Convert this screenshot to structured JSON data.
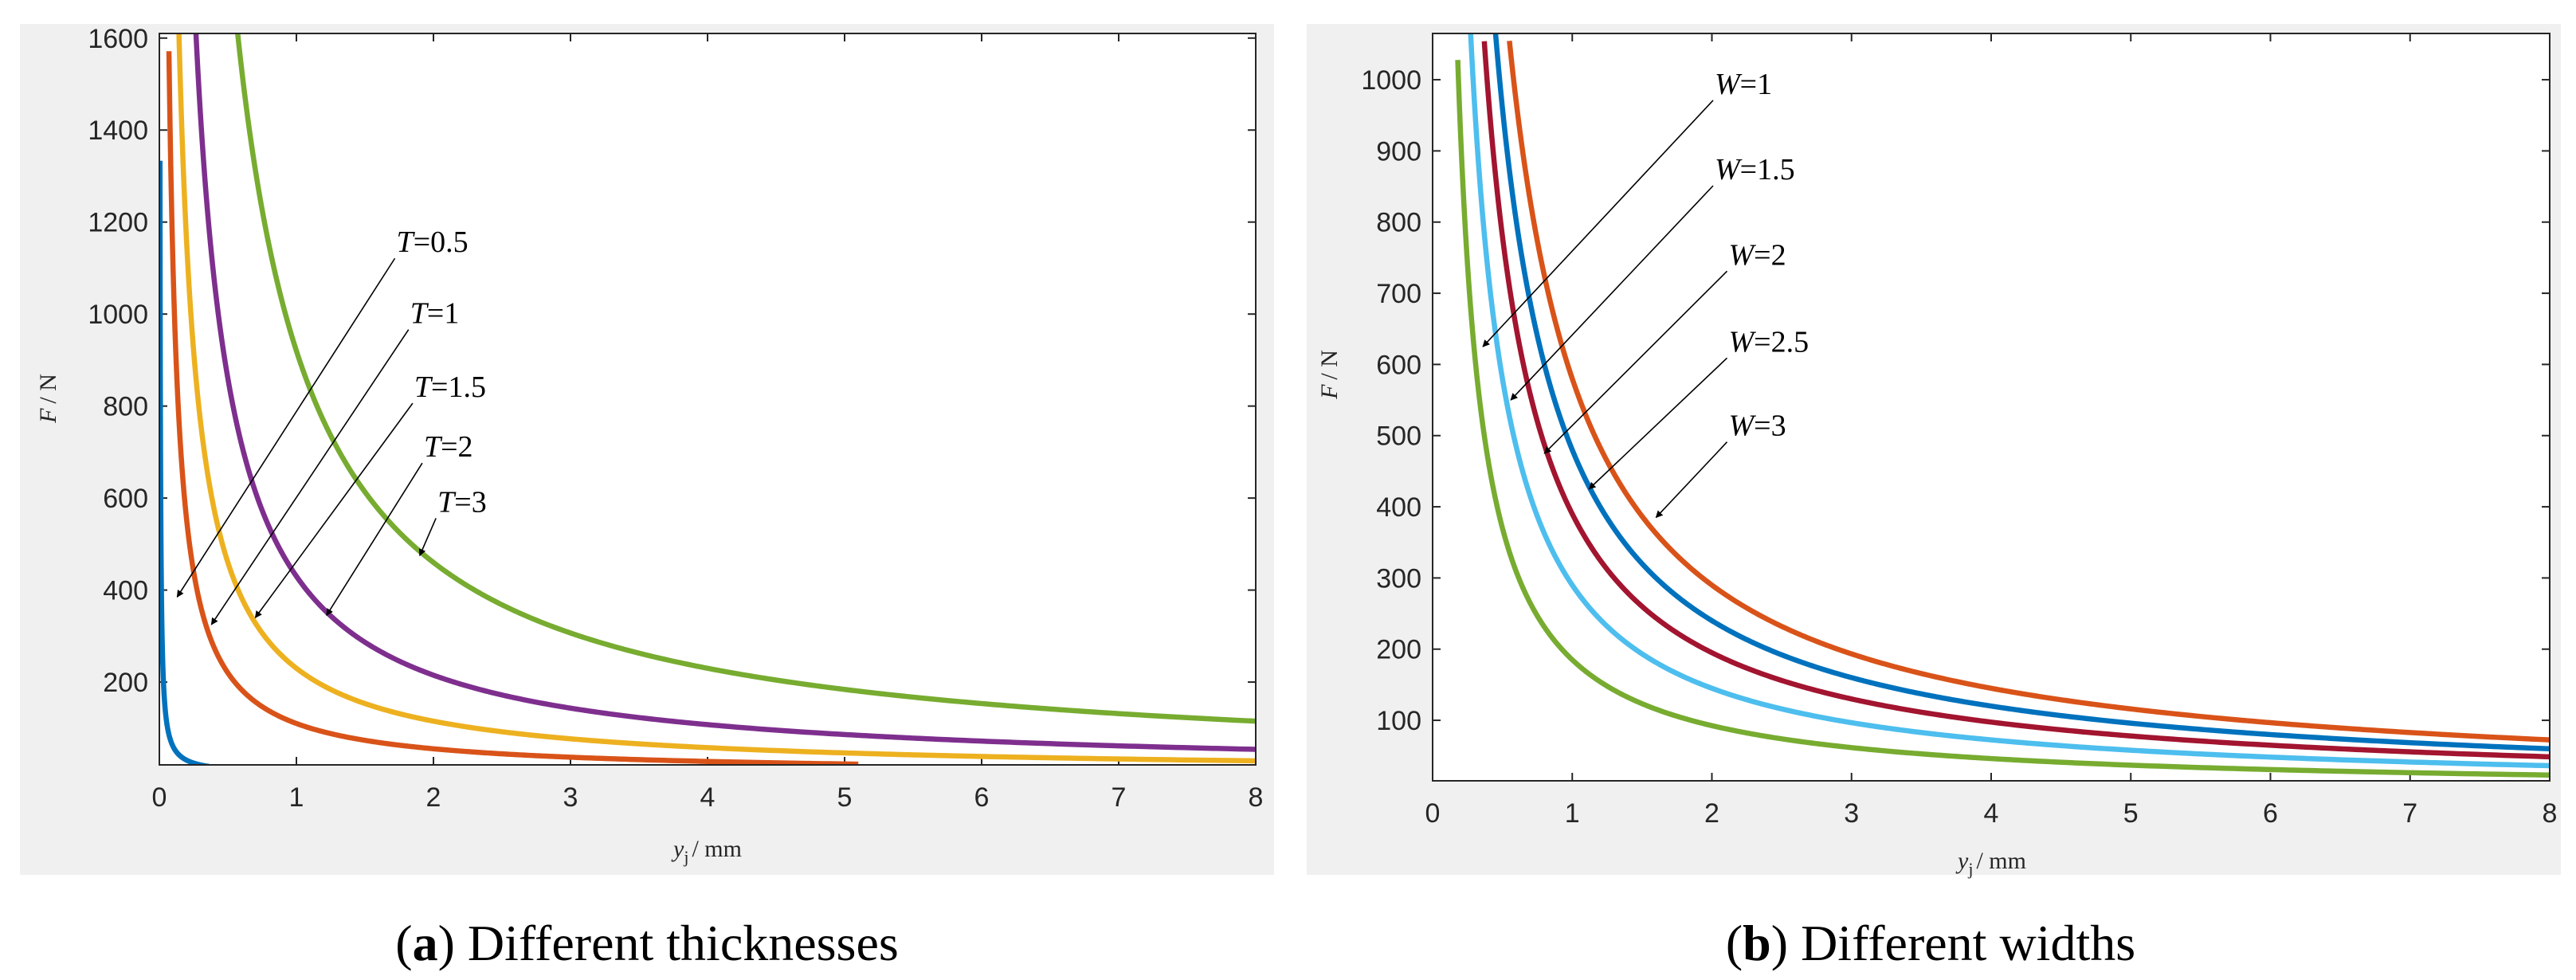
{
  "chart_data": [
    {
      "type": "line",
      "caption_letter": "a",
      "caption_text": ") Different thicknesses",
      "xlabel_var": "y",
      "xlabel_sub": "j",
      "xlabel_unit": "/ mm",
      "ylabel_var": "F",
      "ylabel_unit": "/ N",
      "xlim": [
        0,
        8
      ],
      "ylim": [
        20,
        1610
      ],
      "xticks": [
        0,
        1,
        2,
        3,
        4,
        5,
        6,
        7,
        8
      ],
      "yticks": [
        200,
        400,
        600,
        800,
        1000,
        1200,
        1400,
        1600
      ],
      "grid": false,
      "series": [
        {
          "name": "T=0.5",
          "color": "#0072BD",
          "k": 6,
          "x_start": 0.0045,
          "x_end": 1.26
        },
        {
          "name": "T=1",
          "color": "#D95319",
          "k": 110,
          "x_start": 0.07,
          "x_end": 5.1
        },
        {
          "name": "T=1.5",
          "color": "#EDB120",
          "k": 230,
          "x_start": 0.14,
          "x_end": 8
        },
        {
          "name": "T=2",
          "color": "#7E2F8E",
          "k": 430,
          "x_start": 0.26,
          "x_end": 8
        },
        {
          "name": "T=3",
          "color": "#77AC30",
          "k": 920,
          "x_start": 0.56,
          "x_end": 8
        }
      ],
      "annotations": [
        {
          "var": "T",
          "text": "=0.5",
          "label_x": 1.73,
          "label_y": 1135,
          "arrow_x": 0.13,
          "arrow_y": 385
        },
        {
          "var": "T",
          "text": "=1",
          "label_x": 1.83,
          "label_y": 980,
          "arrow_x": 0.38,
          "arrow_y": 325
        },
        {
          "var": "T",
          "text": "=1.5",
          "label_x": 1.86,
          "label_y": 820,
          "arrow_x": 0.7,
          "arrow_y": 340
        },
        {
          "var": "T",
          "text": "=2",
          "label_x": 1.93,
          "label_y": 690,
          "arrow_x": 1.22,
          "arrow_y": 345
        },
        {
          "var": "T",
          "text": "=3",
          "label_x": 2.03,
          "label_y": 570,
          "arrow_x": 1.9,
          "arrow_y": 475
        }
      ]
    },
    {
      "type": "line",
      "caption_letter": "b",
      "caption_text": ") Different widths",
      "xlabel_var": "y",
      "xlabel_sub": "j",
      "xlabel_unit": "/ mm",
      "ylabel_var": "F",
      "ylabel_unit": "/ N",
      "xlim": [
        0,
        8
      ],
      "ylim": [
        15,
        1065
      ],
      "xticks": [
        0,
        1,
        2,
        3,
        4,
        5,
        6,
        7,
        8
      ],
      "yticks": [
        100,
        200,
        300,
        400,
        500,
        600,
        700,
        800,
        900,
        1000
      ],
      "grid": false,
      "series": [
        {
          "name": "W=1",
          "color": "#77AC30",
          "k": 185,
          "x_start": 0.18,
          "x_end": 8
        },
        {
          "name": "W=1.5",
          "color": "#4DBEEE",
          "k": 290,
          "x_start": 0.27,
          "x_end": 8
        },
        {
          "name": "W=2",
          "color": "#A2142F",
          "k": 390,
          "x_start": 0.37,
          "x_end": 8
        },
        {
          "name": "W=2.5",
          "color": "#0072BD",
          "k": 480,
          "x_start": 0.45,
          "x_end": 8
        },
        {
          "name": "W=3",
          "color": "#D95319",
          "k": 580,
          "x_start": 0.55,
          "x_end": 8
        }
      ],
      "annotations": [
        {
          "var": "W",
          "text": "=1",
          "label_x": 2.02,
          "label_y": 980,
          "arrow_x": 0.36,
          "arrow_y": 625
        },
        {
          "var": "W",
          "text": "=1.5",
          "label_x": 2.02,
          "label_y": 860,
          "arrow_x": 0.56,
          "arrow_y": 550
        },
        {
          "var": "W",
          "text": "=2",
          "label_x": 2.12,
          "label_y": 740,
          "arrow_x": 0.8,
          "arrow_y": 475
        },
        {
          "var": "W",
          "text": "=2.5",
          "label_x": 2.12,
          "label_y": 618,
          "arrow_x": 1.12,
          "arrow_y": 425
        },
        {
          "var": "W",
          "text": "=3",
          "label_x": 2.12,
          "label_y": 500,
          "arrow_x": 1.6,
          "arrow_y": 385
        }
      ]
    }
  ]
}
